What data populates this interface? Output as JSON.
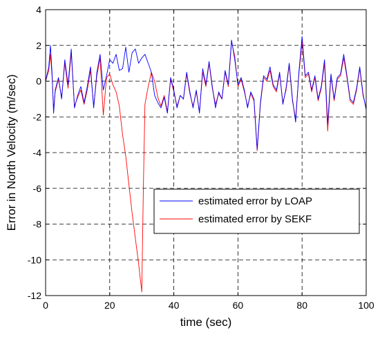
{
  "chart_data": {
    "type": "line",
    "title": "",
    "xlabel": "time (sec)",
    "ylabel": "Error in North Velocity  (m/sec)",
    "xlim": [
      0,
      100
    ],
    "ylim": [
      -12,
      4
    ],
    "xticks": [
      "0",
      "20",
      "40",
      "60",
      "80",
      "100"
    ],
    "yticks": [
      "4",
      "2",
      "0",
      "-2",
      "-4",
      "-6",
      "-8",
      "-10",
      "-12"
    ],
    "grid": true,
    "legend_position": "lower-right inside axes",
    "series": [
      {
        "name": "estimated error by LOAP",
        "color": "#0000ff",
        "x": [
          0,
          1,
          1.5,
          2,
          2.5,
          3,
          4,
          5,
          6,
          7,
          8,
          9,
          10,
          11,
          12,
          13,
          14,
          15,
          16,
          17,
          18,
          19,
          20,
          21,
          22,
          23,
          24,
          25,
          26,
          27,
          28,
          29,
          30,
          31,
          32,
          33,
          34,
          35,
          36,
          37,
          38,
          39,
          40,
          41,
          42,
          43,
          44,
          45,
          46,
          47,
          48,
          49,
          50,
          51,
          52,
          53,
          54,
          55,
          56,
          57,
          58,
          59,
          60,
          61,
          62,
          63,
          64,
          65,
          66,
          67,
          68,
          69,
          70,
          71,
          72,
          73,
          74,
          75,
          76,
          77,
          78,
          79,
          80,
          81,
          82,
          83,
          84,
          85,
          86,
          87,
          88,
          89,
          90,
          91,
          92,
          93,
          94,
          95,
          96,
          97,
          98,
          99,
          100
        ],
        "y": [
          0,
          0.8,
          2.0,
          0.5,
          -1.8,
          -0.5,
          0.2,
          -1.0,
          1.2,
          -0.2,
          1.8,
          -1.5,
          -0.8,
          -0.3,
          -1.2,
          -0.3,
          0.8,
          -1.5,
          0.5,
          1.5,
          -0.5,
          0.3,
          1.2,
          1.0,
          1.5,
          0.6,
          0.7,
          1.9,
          0.5,
          1.6,
          1.8,
          1.0,
          1.3,
          1.5,
          1.0,
          0.5,
          -0.8,
          -1.2,
          -1.5,
          -0.9,
          -1.8,
          0.2,
          -0.5,
          -1.5,
          -0.8,
          -1.0,
          0.5,
          -0.6,
          -1.5,
          -0.5,
          -1.8,
          0.7,
          -0.2,
          1.1,
          -0.3,
          -1.5,
          -0.6,
          -1.0,
          0.6,
          -0.2,
          2.3,
          1.2,
          -0.2,
          0.2,
          -0.5,
          -1.5,
          -0.6,
          -1.0,
          -3.8,
          -1.2,
          0.3,
          0.1,
          0.8,
          -0.2,
          -0.5,
          0.5,
          -1.3,
          -0.4,
          1.0,
          -1.0,
          -2.3,
          0.5,
          2.5,
          0.3,
          0.5,
          -0.5,
          0.3,
          -1.0,
          -0.3,
          1.2,
          -2.4,
          0.4,
          -1.0,
          0.2,
          0.4,
          1.5,
          0.3,
          -1.0,
          -1.2,
          -0.4,
          0.8,
          -0.7,
          -1.6
        ]
      },
      {
        "name": "estimated error by  SEKF",
        "color": "#ff0000",
        "x": [
          0,
          1,
          1.5,
          2,
          2.5,
          3,
          4,
          5,
          6,
          7,
          8,
          9,
          10,
          11,
          12,
          13,
          14,
          15,
          16,
          17,
          18,
          19,
          20,
          21,
          22,
          23,
          24,
          25,
          26,
          27,
          28,
          29,
          29.5,
          30,
          30.5,
          31,
          32,
          33,
          34,
          35,
          36,
          37,
          38,
          39,
          40,
          41,
          42,
          43,
          44,
          45,
          46,
          47,
          48,
          49,
          50,
          51,
          52,
          53,
          54,
          55,
          56,
          57,
          58,
          59,
          60,
          61,
          62,
          63,
          64,
          65,
          66,
          67,
          68,
          69,
          70,
          71,
          72,
          73,
          74,
          75,
          76,
          77,
          78,
          79,
          80,
          81,
          82,
          83,
          84,
          85,
          86,
          87,
          88,
          89,
          90,
          91,
          92,
          93,
          94,
          95,
          96,
          97,
          98,
          99,
          100
        ],
        "y": [
          0,
          0.6,
          1.5,
          0.3,
          -1.6,
          -0.6,
          0.1,
          -0.9,
          1.0,
          -0.4,
          1.6,
          -1.4,
          -0.9,
          -0.5,
          -1.3,
          -0.5,
          0.6,
          -1.4,
          0.3,
          1.3,
          -1.9,
          0.2,
          0.4,
          -0.2,
          -0.6,
          -1.4,
          -3.0,
          -4.2,
          -5.8,
          -7.4,
          -8.8,
          -10.2,
          -11.0,
          -11.8,
          -6.0,
          -1.3,
          -0.3,
          0.5,
          0.0,
          -0.9,
          -1.4,
          -0.8,
          -1.7,
          0.1,
          -0.6,
          -1.4,
          -0.8,
          -1.0,
          0.4,
          -0.7,
          -1.4,
          -0.6,
          -1.7,
          0.5,
          -0.3,
          1.0,
          -0.4,
          -1.3,
          -0.7,
          -1.0,
          0.5,
          -0.3,
          2.2,
          1.4,
          -0.3,
          0.1,
          -0.6,
          -1.4,
          -0.7,
          -1.1,
          -3.9,
          -1.3,
          0.2,
          0.0,
          0.6,
          -0.3,
          -0.6,
          0.4,
          -1.2,
          -0.5,
          0.9,
          -1.1,
          -2.1,
          0.4,
          2.2,
          0.2,
          0.4,
          -0.6,
          0.2,
          -1.1,
          -0.4,
          1.0,
          -2.8,
          0.3,
          -1.1,
          0.1,
          0.3,
          1.3,
          0.2,
          -1.1,
          -1.3,
          -0.5,
          0.7,
          -0.8,
          -1.5
        ]
      }
    ]
  }
}
